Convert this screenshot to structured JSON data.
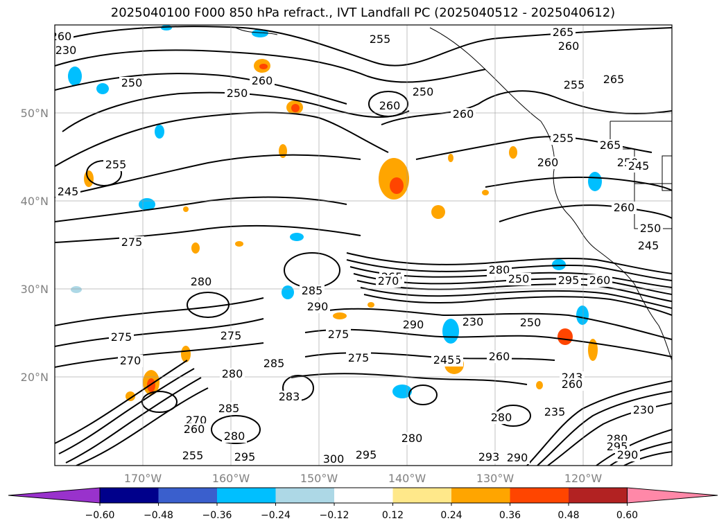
{
  "title": "2025040100 F000 850 hPa refract., IVT Landfall PC (2025040512 - 2025040612)",
  "map": {
    "lat_labels": [
      "50°N",
      "40°N",
      "30°N",
      "20°N"
    ],
    "lon_labels": [
      "170°W",
      "160°W",
      "150°W",
      "140°W",
      "130°W",
      "120°W"
    ],
    "contour_labels": [
      "260",
      "230",
      "255",
      "265",
      "260",
      "265",
      "255",
      "250",
      "260",
      "250",
      "250",
      "260",
      "260",
      "255",
      "260",
      "265",
      "250",
      "245",
      "255",
      "245",
      "260",
      "250",
      "245",
      "275",
      "265",
      "285",
      "290",
      "275",
      "275",
      "290",
      "230",
      "250",
      "245",
      "280",
      "250",
      "260",
      "295",
      "285",
      "270",
      "275",
      "280",
      "275",
      "245",
      "243",
      "283",
      "260",
      "235",
      "230",
      "280",
      "280",
      "270",
      "260",
      "285",
      "280",
      "255",
      "295",
      "300",
      "295",
      "293",
      "290",
      "280",
      "295",
      "290",
      "280",
      "270",
      "260"
    ],
    "colors": {
      "contour": "#000000",
      "grid": "#999999",
      "coast": "#000000"
    }
  },
  "colorbar": {
    "ticks": [
      "−0.60",
      "−0.48",
      "−0.36",
      "−0.24",
      "−0.12",
      "0.12",
      "0.24",
      "0.36",
      "0.48",
      "0.60"
    ],
    "colors": [
      "#9932cc",
      "#00008b",
      "#3a5fcd",
      "#00bfff",
      "#add8e6",
      "#ffffff",
      "#ffe88a",
      "#ffa500",
      "#ff4500",
      "#b22222",
      "#ff88a8"
    ]
  }
}
